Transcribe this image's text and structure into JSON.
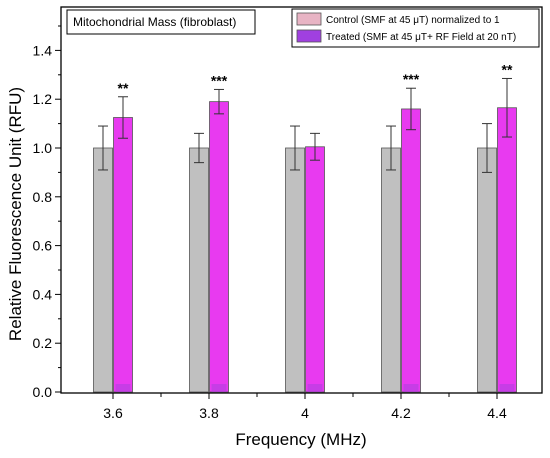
{
  "chart_data": {
    "type": "bar",
    "title": "Mitochondrial Mass (fibroblast)",
    "xlabel": "Frequency (MHz)",
    "ylabel": "Relative Fluorescence Unit (RFU)",
    "categories": [
      "3.6",
      "3.8",
      "4",
      "4.2",
      "4.4"
    ],
    "ylim": [
      0,
      1.5
    ],
    "yticks": [
      "0.0",
      "0.2",
      "0.4",
      "0.6",
      "0.8",
      "1.0",
      "1.2",
      "1.4"
    ],
    "ytick_values": [
      0,
      0.2,
      0.4,
      0.6,
      0.8,
      1.0,
      1.2,
      1.4
    ],
    "legend_position": "top-right",
    "grid": false,
    "series": [
      {
        "name": "Control  (SMF at 45 μT) normalized to 1",
        "color": "#c0c0c0",
        "legend_color": "#e8b4c4",
        "values": [
          1.0,
          1.0,
          1.0,
          1.0,
          1.0
        ],
        "errors": [
          0.09,
          0.06,
          0.09,
          0.09,
          0.1
        ]
      },
      {
        "name": "Treated (SMF at 45 μT+ RF Field at 20 nT)",
        "color": "#e83af0",
        "legend_color": "#a040e0",
        "values": [
          1.125,
          1.19,
          1.005,
          1.16,
          1.165
        ],
        "errors": [
          0.085,
          0.05,
          0.055,
          0.085,
          0.12
        ]
      }
    ],
    "annotations": [
      "**",
      "***",
      "",
      "***",
      "**"
    ]
  }
}
